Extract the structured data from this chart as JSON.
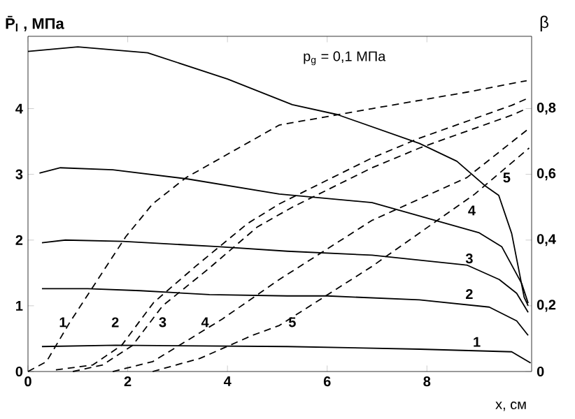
{
  "chart_data": {
    "type": "line",
    "xlabel": "x,  см",
    "ylabel": "P̄$_{l}$ , МПа",
    "y2label": "β",
    "series": [
      {
        "color": "#000000",
        "line_style": "solid",
        "x": [
          0.28,
          1.76,
          5.2,
          7.85,
          9.7,
          10.08
        ],
        "values": [
          0.38,
          0.4,
          0.38,
          0.34,
          0.3,
          0.13
        ]
      },
      {
        "color": "#000000",
        "line_style": "solid",
        "x": [
          0.28,
          1.2,
          2.25,
          3.64,
          5.2,
          6.0,
          7.85,
          9.25,
          9.8,
          10.03
        ],
        "values": [
          1.26,
          1.26,
          1.23,
          1.17,
          1.15,
          1.15,
          1.09,
          0.98,
          0.77,
          0.55
        ]
      },
      {
        "color": "#000000",
        "line_style": "solid",
        "x": [
          0.28,
          0.75,
          1.9,
          3.8,
          5.2,
          6.9,
          8.8,
          9.45,
          9.8,
          10.03
        ],
        "values": [
          1.96,
          2.0,
          1.98,
          1.9,
          1.83,
          1.77,
          1.62,
          1.4,
          1.19,
          0.9
        ]
      },
      {
        "color": "#000000",
        "line_style": "solid",
        "x": [
          0.23,
          0.65,
          1.7,
          3.2,
          5.04,
          6.9,
          9.05,
          9.5,
          9.9,
          10.03
        ],
        "values": [
          3.02,
          3.1,
          3.07,
          2.93,
          2.7,
          2.57,
          2.11,
          1.9,
          1.34,
          1.04
        ]
      },
      {
        "color": "#000000",
        "line_style": "solid",
        "x": [
          0.0,
          1.0,
          2.4,
          4.0,
          5.3,
          6.2,
          7.85,
          8.6,
          9.16,
          9.44,
          9.7,
          9.95,
          10.03
        ],
        "values": [
          4.87,
          4.94,
          4.85,
          4.45,
          4.06,
          3.91,
          3.47,
          3.2,
          2.83,
          2.68,
          2.1,
          1.13,
          1.0
        ]
      },
      {
        "color": "#000000",
        "line_style": "dashed",
        "axis": "y2",
        "x": [
          0.0,
          0.37,
          0.84,
          1.4,
          1.96,
          2.5,
          3.17,
          5.04,
          6.9,
          8.8,
          10.0
        ],
        "values": [
          0.0,
          0.03,
          0.15,
          0.28,
          0.41,
          0.51,
          0.59,
          0.75,
          0.8,
          0.85,
          0.885
        ]
      },
      {
        "color": "#000000",
        "line_style": "dashed",
        "axis": "y2",
        "x": [
          0.56,
          1.3,
          1.88,
          2.52,
          3.36,
          4.4,
          5.04,
          6.9,
          7.85,
          9.7,
          10.0
        ],
        "values": [
          0.005,
          0.02,
          0.08,
          0.21,
          0.32,
          0.45,
          0.51,
          0.65,
          0.71,
          0.81,
          0.83
        ]
      },
      {
        "color": "#000000",
        "line_style": "dashed",
        "axis": "y2",
        "x": [
          0.9,
          1.5,
          2.1,
          2.7,
          3.6,
          4.6,
          5.3,
          6.9,
          7.85,
          9.7,
          10.0
        ],
        "values": [
          0.0,
          0.02,
          0.08,
          0.2,
          0.31,
          0.44,
          0.5,
          0.62,
          0.68,
          0.78,
          0.8
        ]
      },
      {
        "color": "#000000",
        "line_style": "dashed",
        "axis": "y2",
        "x": [
          1.7,
          2.5,
          3.9,
          5.04,
          6.9,
          8.8,
          10.05
        ],
        "values": [
          0.0,
          0.03,
          0.16,
          0.28,
          0.46,
          0.59,
          0.74
        ]
      },
      {
        "color": "#000000",
        "line_style": "dashed",
        "axis": "y2",
        "x": [
          2.5,
          3.45,
          4.5,
          5.04,
          6.9,
          8.96,
          10.05
        ],
        "values": [
          0.0,
          0.04,
          0.11,
          0.14,
          0.32,
          0.54,
          0.68
        ]
      }
    ],
    "xlim": [
      0,
      10.1
    ],
    "ylim": [
      0,
      5.1
    ],
    "y2lim": [
      0,
      1.02
    ],
    "xticks": [
      0,
      2,
      4,
      6,
      8
    ],
    "yticks": [
      0,
      1,
      2,
      3,
      4
    ],
    "y2ticks": [
      0,
      {
        "value": 0.2,
        "label": "0,2"
      },
      {
        "value": 0.4,
        "label": "0,4"
      },
      {
        "value": 0.6,
        "label": "0,6"
      },
      {
        "value": 0.8,
        "label": "0,8"
      }
    ],
    "grid": false,
    "marker": "none",
    "annotations": [
      "p$_{g}$ = 0,1 МПа",
      {
        "text": "1",
        "x": 0.7,
        "y": 0.75
      },
      {
        "text": "2",
        "x": 1.75,
        "y": 0.75
      },
      {
        "text": "3",
        "x": 2.7,
        "y": 0.75
      },
      {
        "text": "4",
        "x": 3.55,
        "y": 0.75
      },
      {
        "text": "5",
        "x": 5.3,
        "y": 0.75
      },
      {
        "text": "1",
        "x": 9.0,
        "y": 0.45
      },
      {
        "text": "2",
        "x": 8.85,
        "y": 1.18
      },
      {
        "text": "3",
        "x": 8.85,
        "y": 1.72
      },
      {
        "text": "4",
        "x": 8.9,
        "y": 2.45
      },
      {
        "text": "5",
        "x": 9.6,
        "y": 2.95
      }
    ]
  }
}
